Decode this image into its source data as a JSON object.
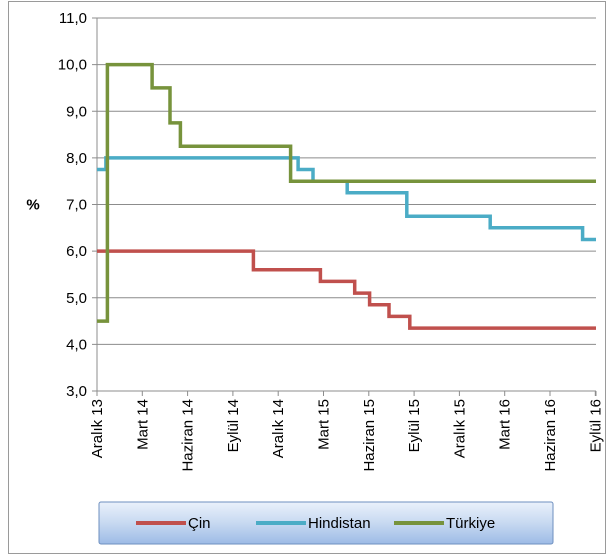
{
  "chart_data": {
    "type": "line",
    "ylabel": "%",
    "ylim": [
      3.0,
      11.0
    ],
    "y_ticks": [
      "3,0",
      "4,0",
      "5,0",
      "6,0",
      "7,0",
      "8,0",
      "9,0",
      "10,0",
      "11,0"
    ],
    "x_range": [
      0,
      33.5
    ],
    "x_tick_labels": [
      "Aralık 13",
      "Mart 14",
      "Haziran 14",
      "Eylül 14",
      "Aralık 14",
      "Mart 15",
      "Haziran 15",
      "Eylül 15",
      "Aralık 15",
      "Mart 16",
      "Haziran 16",
      "Eylül 16"
    ],
    "grid": "horizontal",
    "legend_position": "bottom",
    "series": [
      {
        "name": "Çin",
        "color": "#c0504d",
        "step_points": [
          [
            0,
            6.0
          ],
          [
            10.5,
            6.0
          ],
          [
            10.5,
            5.6
          ],
          [
            15.0,
            5.6
          ],
          [
            15.0,
            5.35
          ],
          [
            17.3,
            5.35
          ],
          [
            17.3,
            5.1
          ],
          [
            18.3,
            5.1
          ],
          [
            18.3,
            4.85
          ],
          [
            19.6,
            4.85
          ],
          [
            19.6,
            4.6
          ],
          [
            21.0,
            4.6
          ],
          [
            21.0,
            4.35
          ],
          [
            33.5,
            4.35
          ]
        ]
      },
      {
        "name": "Hindistan",
        "color": "#4bacc6",
        "step_points": [
          [
            0,
            7.75
          ],
          [
            0.6,
            7.75
          ],
          [
            0.6,
            8.0
          ],
          [
            13.5,
            8.0
          ],
          [
            13.5,
            7.75
          ],
          [
            14.5,
            7.75
          ],
          [
            14.5,
            7.5
          ],
          [
            16.8,
            7.5
          ],
          [
            16.8,
            7.25
          ],
          [
            20.8,
            7.25
          ],
          [
            20.8,
            6.75
          ],
          [
            26.4,
            6.75
          ],
          [
            26.4,
            6.5
          ],
          [
            32.6,
            6.5
          ],
          [
            32.6,
            6.25
          ],
          [
            33.5,
            6.25
          ]
        ]
      },
      {
        "name": "Türkiye",
        "color": "#77933c",
        "step_points": [
          [
            0,
            4.5
          ],
          [
            0.7,
            4.5
          ],
          [
            0.7,
            10.0
          ],
          [
            3.7,
            10.0
          ],
          [
            3.7,
            9.5
          ],
          [
            4.9,
            9.5
          ],
          [
            4.9,
            8.75
          ],
          [
            5.6,
            8.75
          ],
          [
            5.6,
            8.25
          ],
          [
            13.0,
            8.25
          ],
          [
            13.0,
            7.5
          ],
          [
            33.5,
            7.5
          ]
        ]
      }
    ]
  }
}
